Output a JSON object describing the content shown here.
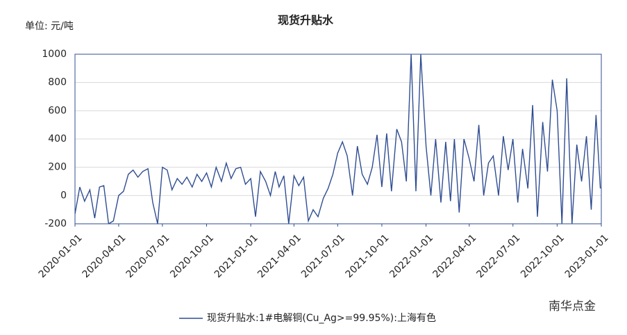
{
  "chart_data": {
    "type": "line",
    "title": "现货升贴水",
    "unit_label": "单位: 元/吨",
    "watermark": "南华点金",
    "x": [
      "2020-01-01",
      "2020-01-11",
      "2020-01-21",
      "2020-02-01",
      "2020-02-11",
      "2020-02-21",
      "2020-03-01",
      "2020-03-11",
      "2020-03-21",
      "2020-04-01",
      "2020-04-11",
      "2020-04-21",
      "2020-05-01",
      "2020-05-11",
      "2020-05-21",
      "2020-06-01",
      "2020-06-11",
      "2020-06-21",
      "2020-07-01",
      "2020-07-11",
      "2020-07-21",
      "2020-08-01",
      "2020-08-11",
      "2020-08-21",
      "2020-09-01",
      "2020-09-11",
      "2020-09-21",
      "2020-10-01",
      "2020-10-11",
      "2020-10-21",
      "2020-11-01",
      "2020-11-11",
      "2020-11-21",
      "2020-12-01",
      "2020-12-11",
      "2020-12-21",
      "2021-01-01",
      "2021-01-11",
      "2021-01-21",
      "2021-02-01",
      "2021-02-11",
      "2021-02-21",
      "2021-03-01",
      "2021-03-11",
      "2021-03-21",
      "2021-04-01",
      "2021-04-11",
      "2021-04-21",
      "2021-05-01",
      "2021-05-11",
      "2021-05-21",
      "2021-06-01",
      "2021-06-11",
      "2021-06-21",
      "2021-07-01",
      "2021-07-11",
      "2021-07-21",
      "2021-08-01",
      "2021-08-11",
      "2021-08-21",
      "2021-09-01",
      "2021-09-11",
      "2021-09-21",
      "2021-10-01",
      "2021-10-11",
      "2021-10-21",
      "2021-11-01",
      "2021-11-11",
      "2021-11-21",
      "2021-12-01",
      "2021-12-11",
      "2021-12-21",
      "2022-01-01",
      "2022-01-11",
      "2022-01-21",
      "2022-02-01",
      "2022-02-11",
      "2022-02-21",
      "2022-03-01",
      "2022-03-11",
      "2022-03-21",
      "2022-04-01",
      "2022-04-11",
      "2022-04-21",
      "2022-05-01",
      "2022-05-11",
      "2022-05-21",
      "2022-06-01",
      "2022-06-11",
      "2022-06-21",
      "2022-07-01",
      "2022-07-11",
      "2022-07-21",
      "2022-08-01",
      "2022-08-11",
      "2022-08-21",
      "2022-09-01",
      "2022-09-11",
      "2022-09-21",
      "2022-10-01",
      "2022-10-11",
      "2022-10-21",
      "2022-11-01",
      "2022-11-11",
      "2022-11-21",
      "2022-12-01",
      "2022-12-11",
      "2022-12-21",
      "2022-12-30"
    ],
    "series": [
      {
        "name": "现货升贴水:1#电解铜(Cu_Ag>=99.95%):上海有色",
        "color": "#2f4d92",
        "values": [
          -130,
          60,
          -40,
          40,
          -160,
          60,
          70,
          -200,
          -180,
          0,
          30,
          150,
          180,
          130,
          170,
          190,
          -50,
          -200,
          200,
          180,
          40,
          120,
          80,
          130,
          60,
          150,
          100,
          160,
          60,
          200,
          100,
          230,
          120,
          190,
          200,
          80,
          120,
          -150,
          170,
          100,
          0,
          170,
          60,
          140,
          -200,
          140,
          70,
          130,
          -180,
          -100,
          -150,
          -20,
          50,
          150,
          300,
          380,
          280,
          0,
          350,
          150,
          80,
          200,
          430,
          60,
          440,
          30,
          470,
          380,
          100,
          1000,
          30,
          1000,
          350,
          0,
          400,
          -50,
          380,
          -40,
          400,
          -120,
          400,
          260,
          100,
          500,
          0,
          230,
          280,
          0,
          420,
          180,
          400,
          -50,
          330,
          50,
          640,
          -150,
          520,
          170,
          820,
          600,
          -200,
          830,
          -200,
          360,
          100,
          420,
          -100,
          570,
          50
        ]
      }
    ],
    "xlim": [
      "2020-01-01",
      "2023-01-01"
    ],
    "xticks": [
      "2020-01-01",
      "2020-04-01",
      "2020-07-01",
      "2020-10-01",
      "2021-01-01",
      "2021-04-01",
      "2021-07-01",
      "2021-10-01",
      "2022-01-01",
      "2022-04-01",
      "2022-07-01",
      "2022-10-01",
      "2023-01-01"
    ],
    "ylim": [
      -200,
      1000
    ],
    "yticks": [
      -200,
      0,
      200,
      400,
      600,
      800,
      1000
    ],
    "grid": true,
    "legend": "bottom"
  }
}
